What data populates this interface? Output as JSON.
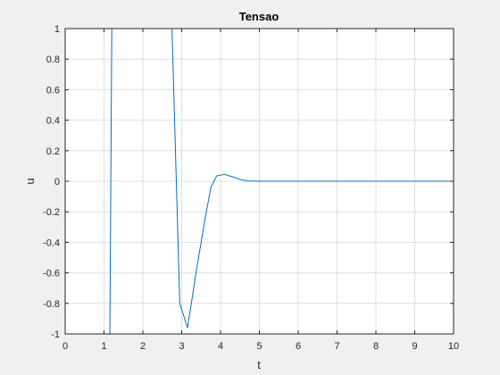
{
  "chart_data": {
    "type": "line",
    "title": "Tensao",
    "xlabel": "t",
    "ylabel": "u",
    "xlim": [
      0,
      10
    ],
    "ylim": [
      -1,
      1
    ],
    "xticks": [
      0,
      1,
      2,
      3,
      4,
      5,
      6,
      7,
      8,
      9,
      10
    ],
    "yticks": [
      -1,
      -0.8,
      -0.6,
      -0.4,
      -0.2,
      0,
      0.2,
      0.4,
      0.6,
      0.8,
      1
    ],
    "grid": true,
    "series": [
      {
        "color": "#0072bd",
        "x": [
          0,
          1.15,
          1.2,
          2.75,
          2.95,
          3.15,
          3.4,
          3.6,
          3.75,
          3.9,
          4.1,
          4.3,
          4.5,
          4.7,
          5.0,
          6,
          7,
          8,
          9,
          10
        ],
        "y": [
          -1,
          -1,
          1,
          1,
          -0.8,
          -0.96,
          -0.55,
          -0.25,
          -0.04,
          0.035,
          0.045,
          0.03,
          0.012,
          0.002,
          0,
          0,
          0,
          0,
          0,
          0
        ]
      }
    ]
  }
}
